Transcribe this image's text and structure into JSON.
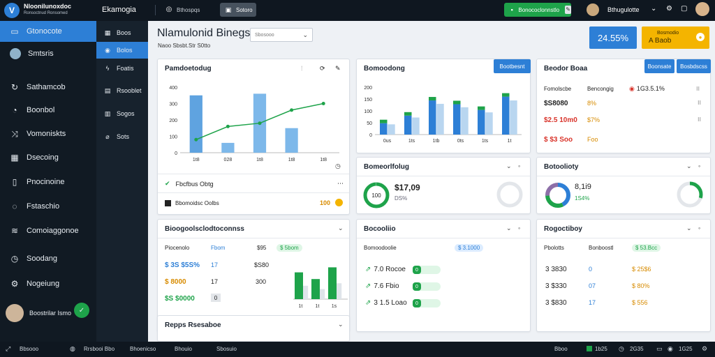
{
  "topbar": {
    "logo_title": "Nloonilunoxdoc",
    "logo_subtitle": "Ronsoctnud Ronsomed",
    "workspace": "Ekamogia",
    "search_placeholder": "Bthospqs",
    "tab_active": "Sotoro",
    "action_button": "Bonococlonnstlo",
    "user_name": "Bthugulotte"
  },
  "sidebar": {
    "items": [
      {
        "label": "Gtonocote",
        "icon": "monitor-icon"
      },
      {
        "label": "Smtsris",
        "icon": "avatar-icon"
      },
      {
        "label": "Sathamcob",
        "icon": "refresh-icon"
      },
      {
        "label": "Boonbol",
        "icon": "gauge-icon"
      },
      {
        "label": "Vomoniskts",
        "icon": "share-icon"
      },
      {
        "label": "Dsecoing",
        "icon": "grid-icon"
      },
      {
        "label": "Pnocinoine",
        "icon": "document-icon"
      },
      {
        "label": "Fstaschio",
        "icon": "chat-icon"
      },
      {
        "label": "Comoiaggonoe",
        "icon": "stack-icon"
      },
      {
        "label": "Soodang",
        "icon": "clock-icon"
      },
      {
        "label": "Nogeiung",
        "icon": "settings-icon"
      }
    ],
    "user": "Boostrilar Ismo"
  },
  "subnav": {
    "items": [
      {
        "label": "Boos",
        "icon": "grid-icon"
      },
      {
        "label": "Bolos",
        "icon": "user-icon"
      },
      {
        "label": "Foatis",
        "icon": "bolt-icon"
      },
      {
        "label": "Rsooblet",
        "icon": "file-icon"
      },
      {
        "label": "Sogos",
        "icon": "table-icon"
      },
      {
        "label": "Sots",
        "icon": "drop-icon"
      }
    ]
  },
  "main": {
    "title": "Nlamulonid Binegsia",
    "subtitle": "Naoo Sbsbt.Str S0tto",
    "dropdown": "Sbosooo",
    "kpi_blue": "24.55%",
    "kpi_orange_line1": "Bosmodio",
    "kpi_orange_line2": "A Baob"
  },
  "cards": {
    "c1": {
      "title": "Pamdoetodug",
      "footer1": "Fbcfbus Obtg",
      "footer2": "Bbomoidsc Oolbs",
      "footer2_value": "100"
    },
    "c2": {
      "title": "Bomoodong",
      "button": "Bootbesnt"
    },
    "c3": {
      "title": "Beodor Boaa",
      "button1": "Boonsate",
      "button2": "Bosbdscss",
      "rows": [
        {
          "a": "Fomolscbe",
          "b": "Bencongig",
          "c": "1G3.5.1%"
        },
        {
          "a": "$S8080",
          "b": "8%",
          "c": ""
        },
        {
          "a": "$2.5 10m0",
          "b": "$7%",
          "c": ""
        },
        {
          "a": "$ $3 Soo",
          "b": "Foo",
          "c": ""
        }
      ]
    },
    "c4": {
      "title": "Bomeorlfolug",
      "value": "$17,09",
      "sub": "DS%"
    },
    "c5": {
      "title": "Botoolioty",
      "value": "8,1i9",
      "sub": "1S4%"
    },
    "c6": {
      "title": "Bioogoolsclodtoconnss",
      "col1": "Piocenolo",
      "col2": "Fbom",
      "col3": "$95",
      "tag": "$ 5bom",
      "rows": [
        {
          "a": "$ 3S $5S%",
          "b": "17",
          "c": "$S80"
        },
        {
          "a": "$ 8000",
          "b": "17",
          "c": "300"
        },
        {
          "a": "$S $0000",
          "b": "0",
          "c": ""
        }
      ]
    },
    "c7": {
      "title": "Bocooliio",
      "col1": "Bomoodoolie",
      "tag": "$ 3.1000",
      "rows": [
        {
          "a": "7.0 Rocoe",
          "b": "0"
        },
        {
          "a": "7.6 Fbio",
          "b": "0"
        },
        {
          "a": "3 1.5 Loao",
          "b": "0"
        }
      ]
    },
    "c8": {
      "title": "Rogoctiboy",
      "col1": "Pbolotts",
      "col2": "Bonboostl",
      "tag": "$ 53.Bcc",
      "rows": [
        {
          "a": "3 3830",
          "b": "0",
          "c": "$ 25$6"
        },
        {
          "a": "3 $330",
          "b": "07",
          "c": "$ 80%"
        },
        {
          "a": "3 $830",
          "b": "17",
          "c": "$ 556"
        }
      ]
    },
    "c9": {
      "title": "Repps Rsesaboe"
    }
  },
  "status": {
    "left1": "Bbsooo",
    "left2": "Rrsbooi Bbo",
    "left3": "Bhoenicso",
    "left4": "Bhouio",
    "left5": "Sbosuio",
    "right1": "Bboo",
    "right2": "1b25",
    "right3": "2G35",
    "right4": "1G25"
  },
  "chart_data": [
    {
      "type": "bar",
      "categories": [
        "1t8",
        "028",
        "1t8",
        "1t8",
        "1t8"
      ],
      "series": [
        {
          "values": [
            350,
            0,
            0,
            0,
            0
          ]
        },
        {
          "values": [
            0,
            60,
            0,
            150,
            0
          ]
        },
        {
          "values": [
            0,
            0,
            360,
            0,
            0
          ]
        }
      ],
      "line_values": [
        80,
        160,
        180,
        260,
        300
      ],
      "ylim": [
        0,
        400
      ],
      "yticks": [
        "0",
        "100",
        "200",
        "300",
        "400"
      ]
    },
    {
      "type": "bar",
      "categories": [
        "0us",
        "1ts",
        "1tb",
        "0ts",
        "1ts",
        "1t"
      ],
      "values": [
        60,
        100,
        180,
        160,
        130,
        200
      ],
      "ylim": [
        0,
        250
      ],
      "yticks": [
        "0",
        "50",
        "100",
        "150",
        "200"
      ]
    },
    {
      "type": "bar",
      "categories": [
        "1t",
        "1t",
        "1s"
      ],
      "values": [
        80,
        60,
        95
      ],
      "ylim": [
        0,
        100
      ]
    }
  ]
}
